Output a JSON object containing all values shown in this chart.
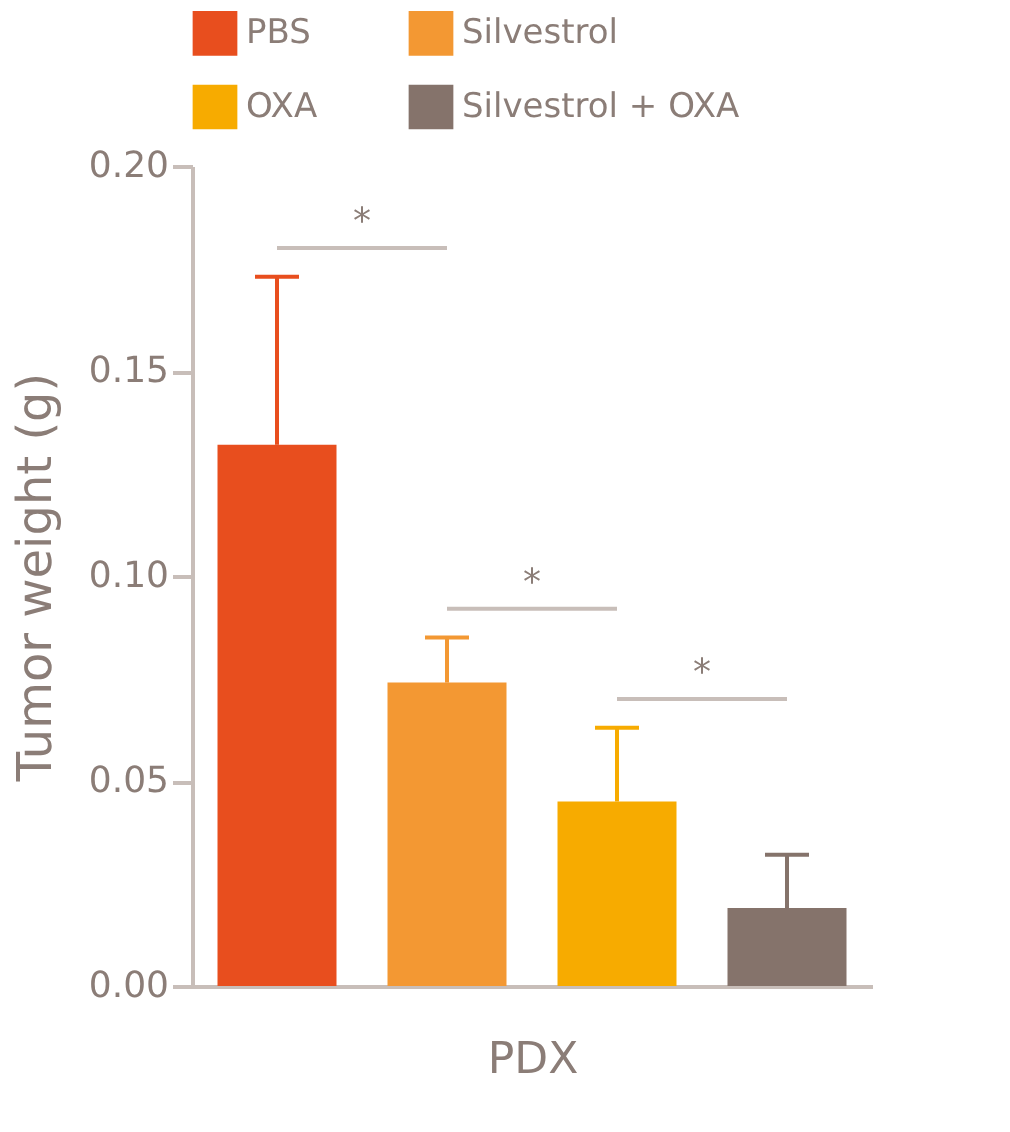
{
  "chart_data": {
    "type": "bar",
    "ylabel": "Tumor weight (g)",
    "xlabel": "PDX",
    "categories": [
      null,
      null,
      null,
      null
    ],
    "series": [
      {
        "name": "PBS",
        "color": "#e84e1e",
        "values": [
          0.132,
          null,
          null,
          null
        ],
        "errors": [
          [
            0.132,
            0.173
          ],
          null,
          null,
          null
        ]
      },
      {
        "name": "Silvestrol",
        "color": "#f39833",
        "values": [
          null,
          0.074,
          null,
          null
        ],
        "errors": [
          null,
          [
            0.074,
            0.085
          ],
          null,
          null
        ]
      },
      {
        "name": "OXA",
        "color": "#f7ab00",
        "values": [
          null,
          null,
          0.045,
          null
        ],
        "errors": [
          null,
          null,
          [
            0.045,
            0.063
          ],
          null
        ]
      },
      {
        "name": "Silvestrol + OXA",
        "color": "#85736b",
        "values": [
          null,
          null,
          null,
          0.019
        ],
        "errors": [
          null,
          null,
          null,
          [
            0.019,
            0.032
          ]
        ]
      }
    ],
    "ylim": [
      0,
      0.2
    ],
    "yticks": [
      {
        "value": 0,
        "label": "0.00"
      },
      {
        "value": 0.05,
        "label": "0.05"
      },
      {
        "value": 0.1,
        "label": "0.10"
      },
      {
        "value": 0.15,
        "label": "0.15"
      },
      {
        "value": 0.2,
        "label": "0.20"
      }
    ],
    "annotations": [
      "*",
      "*",
      "*"
    ],
    "grid": false,
    "legend": "top"
  }
}
